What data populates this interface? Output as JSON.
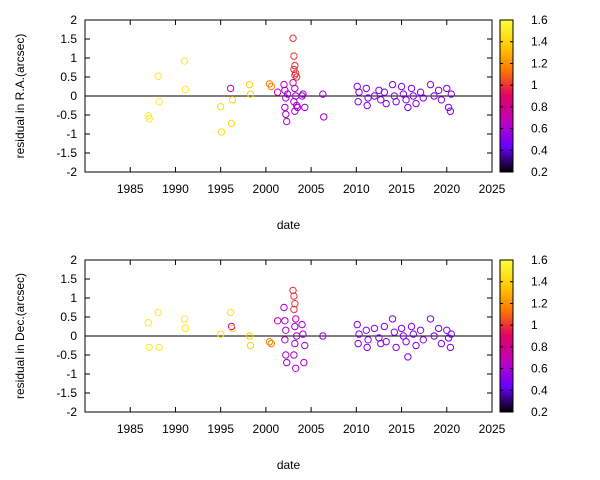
{
  "chart_data": [
    {
      "type": "scatter",
      "xlabel": "date",
      "ylabel": "residual in R.A.(arcsec)",
      "xlim": [
        1980,
        2025
      ],
      "ylim": [
        -2,
        2
      ],
      "xticks": [
        "1985",
        "1990",
        "1995",
        "2000",
        "2005",
        "2010",
        "2015",
        "2020",
        "2025"
      ],
      "yticks": [
        "-2",
        "-1.5",
        "-1",
        "-0.5",
        "0",
        "0.5",
        "1",
        "1.5",
        "2"
      ],
      "zero_line": true,
      "colorbar": {
        "range": [
          0.2,
          1.6
        ],
        "ticks": [
          "0.2",
          "0.4",
          "0.6",
          "0.8",
          "1",
          "1.2",
          "1.4",
          "1.6"
        ],
        "palette": [
          "#000000",
          "#6a00ff",
          "#c000c0",
          "#e00060",
          "#ff7700",
          "#ffcc00",
          "#ffff40"
        ]
      },
      "marker": "open-circle",
      "points": [
        [
          1987.0,
          -0.52,
          1.5
        ],
        [
          1987.1,
          -0.6,
          1.5
        ],
        [
          1988.1,
          0.52,
          1.5
        ],
        [
          1988.2,
          -0.15,
          1.5
        ],
        [
          1991.0,
          0.92,
          1.5
        ],
        [
          1991.1,
          0.17,
          1.5
        ],
        [
          1995.0,
          -0.28,
          1.45
        ],
        [
          1995.1,
          -0.95,
          1.45
        ],
        [
          1996.1,
          0.2,
          0.7
        ],
        [
          1996.2,
          -0.72,
          1.45
        ],
        [
          1996.3,
          -0.1,
          1.4
        ],
        [
          1998.2,
          0.3,
          1.4
        ],
        [
          1998.3,
          0.05,
          1.4
        ],
        [
          2000.4,
          0.32,
          1.15
        ],
        [
          2000.6,
          0.25,
          1.15
        ],
        [
          2001.3,
          0.1,
          0.7
        ],
        [
          2002.0,
          0.3,
          0.7
        ],
        [
          2002.1,
          0.15,
          0.6
        ],
        [
          2002.2,
          -0.05,
          0.6
        ],
        [
          2002.1,
          -0.3,
          0.6
        ],
        [
          2002.2,
          -0.48,
          0.6
        ],
        [
          2002.3,
          -0.67,
          0.6
        ],
        [
          2002.4,
          0.05,
          0.6
        ],
        [
          2003.0,
          1.52,
          1.0
        ],
        [
          2003.1,
          1.05,
          1.0
        ],
        [
          2003.2,
          0.8,
          1.0
        ],
        [
          2003.1,
          0.7,
          1.0
        ],
        [
          2003.3,
          0.6,
          1.0
        ],
        [
          2003.2,
          0.55,
          1.0
        ],
        [
          2003.4,
          0.5,
          1.0
        ],
        [
          2003.0,
          0.35,
          0.7
        ],
        [
          2003.2,
          0.2,
          0.6
        ],
        [
          2003.3,
          0.0,
          0.6
        ],
        [
          2003.1,
          -0.15,
          0.6
        ],
        [
          2003.4,
          -0.25,
          0.6
        ],
        [
          2003.2,
          -0.4,
          0.6
        ],
        [
          2003.5,
          -0.3,
          0.6
        ],
        [
          2004.0,
          0.0,
          0.6
        ],
        [
          2004.1,
          0.05,
          0.6
        ],
        [
          2004.3,
          -0.3,
          0.6
        ],
        [
          2006.3,
          0.05,
          0.6
        ],
        [
          2006.4,
          -0.55,
          0.6
        ],
        [
          2010.1,
          0.25,
          0.5
        ],
        [
          2010.3,
          0.1,
          0.5
        ],
        [
          2010.2,
          -0.15,
          0.5
        ],
        [
          2011.1,
          0.2,
          0.5
        ],
        [
          2011.3,
          -0.05,
          0.5
        ],
        [
          2011.2,
          -0.25,
          0.5
        ],
        [
          2012.0,
          0.0,
          0.5
        ],
        [
          2012.5,
          0.15,
          0.5
        ],
        [
          2012.7,
          -0.1,
          0.5
        ],
        [
          2013.1,
          0.1,
          0.5
        ],
        [
          2013.3,
          -0.2,
          0.5
        ],
        [
          2014.0,
          0.3,
          0.5
        ],
        [
          2014.2,
          0.0,
          0.5
        ],
        [
          2014.4,
          -0.15,
          0.5
        ],
        [
          2015.0,
          0.25,
          0.5
        ],
        [
          2015.2,
          0.05,
          0.5
        ],
        [
          2015.5,
          -0.1,
          0.5
        ],
        [
          2015.7,
          -0.3,
          0.5
        ],
        [
          2016.1,
          0.2,
          0.5
        ],
        [
          2016.3,
          0.0,
          0.5
        ],
        [
          2016.6,
          -0.2,
          0.5
        ],
        [
          2017.1,
          0.1,
          0.5
        ],
        [
          2017.4,
          -0.05,
          0.5
        ],
        [
          2018.2,
          0.3,
          0.5
        ],
        [
          2018.6,
          0.0,
          0.5
        ],
        [
          2019.1,
          0.15,
          0.5
        ],
        [
          2019.4,
          -0.1,
          0.5
        ],
        [
          2020.0,
          0.2,
          0.5
        ],
        [
          2020.2,
          -0.3,
          0.5
        ],
        [
          2020.4,
          -0.4,
          0.5
        ],
        [
          2020.5,
          0.05,
          0.5
        ]
      ]
    },
    {
      "type": "scatter",
      "xlabel": "date",
      "ylabel": "residual in Dec.(arcsec)",
      "xlim": [
        1980,
        2025
      ],
      "ylim": [
        -2,
        2
      ],
      "xticks": [
        "1985",
        "1990",
        "1995",
        "2000",
        "2005",
        "2010",
        "2015",
        "2020",
        "2025"
      ],
      "yticks": [
        "-2",
        "-1.5",
        "-1",
        "-0.5",
        "0",
        "0.5",
        "1",
        "1.5",
        "2"
      ],
      "zero_line": true,
      "colorbar": {
        "range": [
          0.2,
          1.6
        ],
        "ticks": [
          "0.2",
          "0.4",
          "0.6",
          "0.8",
          "1",
          "1.2",
          "1.4",
          "1.6"
        ],
        "palette": [
          "#000000",
          "#6a00ff",
          "#c000c0",
          "#e00060",
          "#ff7700",
          "#ffcc00",
          "#ffff40"
        ]
      },
      "marker": "open-circle",
      "points": [
        [
          1987.0,
          0.35,
          1.5
        ],
        [
          1987.1,
          -0.3,
          1.5
        ],
        [
          1988.1,
          0.62,
          1.5
        ],
        [
          1988.2,
          -0.3,
          1.5
        ],
        [
          1991.0,
          0.45,
          1.5
        ],
        [
          1991.1,
          0.2,
          1.5
        ],
        [
          1995.0,
          0.05,
          1.45
        ],
        [
          1996.1,
          0.62,
          1.45
        ],
        [
          1996.2,
          0.25,
          0.7
        ],
        [
          1996.3,
          0.2,
          1.4
        ],
        [
          1998.2,
          0.0,
          1.4
        ],
        [
          1998.3,
          -0.25,
          1.4
        ],
        [
          2000.4,
          -0.15,
          1.15
        ],
        [
          2000.6,
          -0.2,
          1.15
        ],
        [
          2001.3,
          0.4,
          0.7
        ],
        [
          2002.0,
          0.75,
          0.6
        ],
        [
          2002.1,
          0.4,
          0.6
        ],
        [
          2002.2,
          0.15,
          0.6
        ],
        [
          2002.1,
          -0.1,
          0.6
        ],
        [
          2002.2,
          -0.5,
          0.6
        ],
        [
          2002.3,
          -0.7,
          0.6
        ],
        [
          2003.0,
          1.2,
          1.0
        ],
        [
          2003.1,
          1.05,
          1.0
        ],
        [
          2003.2,
          0.85,
          1.0
        ],
        [
          2003.1,
          0.7,
          1.0
        ],
        [
          2003.3,
          0.45,
          0.7
        ],
        [
          2003.2,
          0.25,
          0.6
        ],
        [
          2003.4,
          0.0,
          0.6
        ],
        [
          2003.2,
          -0.2,
          0.6
        ],
        [
          2003.1,
          -0.5,
          0.6
        ],
        [
          2003.3,
          -0.85,
          0.6
        ],
        [
          2004.0,
          0.3,
          0.6
        ],
        [
          2004.1,
          0.05,
          0.6
        ],
        [
          2004.3,
          -0.25,
          0.6
        ],
        [
          2004.2,
          -0.7,
          0.6
        ],
        [
          2006.3,
          0.0,
          0.6
        ],
        [
          2010.1,
          0.3,
          0.5
        ],
        [
          2010.3,
          0.05,
          0.5
        ],
        [
          2010.2,
          -0.2,
          0.5
        ],
        [
          2011.1,
          0.15,
          0.5
        ],
        [
          2011.3,
          -0.1,
          0.5
        ],
        [
          2011.2,
          -0.3,
          0.5
        ],
        [
          2012.0,
          0.2,
          0.5
        ],
        [
          2012.5,
          -0.05,
          0.5
        ],
        [
          2012.7,
          -0.2,
          0.5
        ],
        [
          2013.1,
          0.25,
          0.5
        ],
        [
          2013.3,
          -0.15,
          0.5
        ],
        [
          2014.0,
          0.45,
          0.5
        ],
        [
          2014.2,
          0.1,
          0.5
        ],
        [
          2014.4,
          -0.3,
          0.5
        ],
        [
          2015.0,
          0.2,
          0.5
        ],
        [
          2015.2,
          0.0,
          0.5
        ],
        [
          2015.5,
          -0.15,
          0.5
        ],
        [
          2015.7,
          -0.55,
          0.5
        ],
        [
          2016.1,
          0.25,
          0.5
        ],
        [
          2016.3,
          0.05,
          0.5
        ],
        [
          2016.6,
          -0.25,
          0.5
        ],
        [
          2017.1,
          0.15,
          0.5
        ],
        [
          2017.4,
          -0.1,
          0.5
        ],
        [
          2018.2,
          0.45,
          0.5
        ],
        [
          2018.6,
          0.0,
          0.5
        ],
        [
          2019.1,
          0.2,
          0.5
        ],
        [
          2019.4,
          -0.2,
          0.5
        ],
        [
          2020.0,
          0.15,
          0.5
        ],
        [
          2020.2,
          -0.05,
          0.5
        ],
        [
          2020.4,
          -0.3,
          0.5
        ],
        [
          2020.5,
          0.05,
          0.5
        ]
      ]
    }
  ]
}
